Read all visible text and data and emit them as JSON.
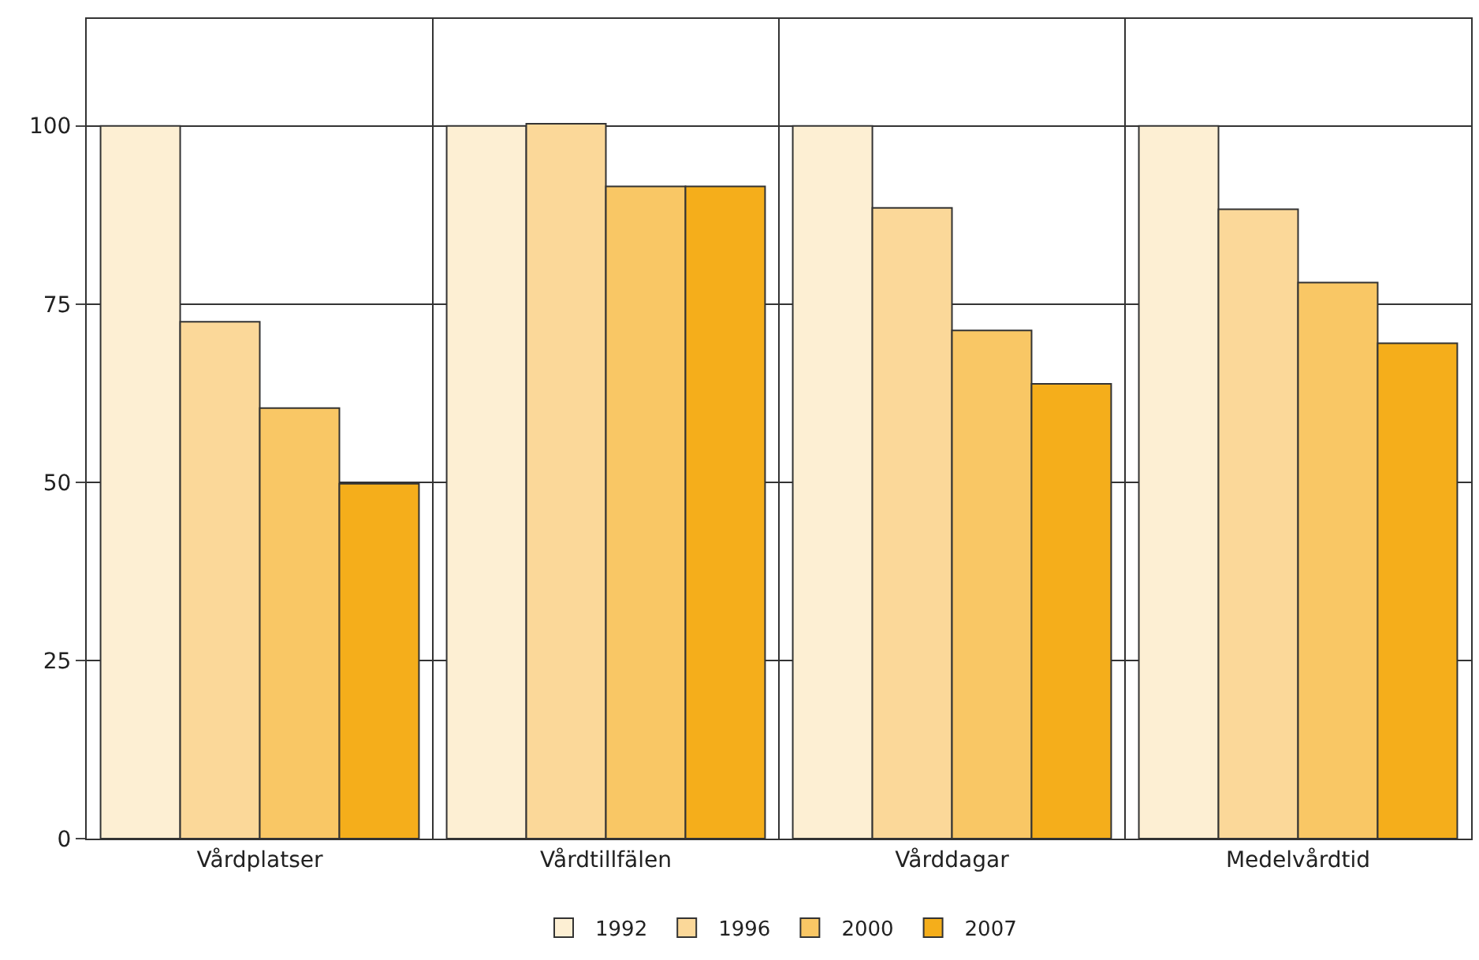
{
  "chart_data": {
    "type": "bar",
    "categories": [
      "Vårdplatser",
      "Vårdtillfälen",
      "Vårddagar",
      "Medelvårdtid"
    ],
    "series": [
      {
        "name": "1992",
        "color": "#fdefd3",
        "values": [
          100,
          100,
          100,
          100
        ]
      },
      {
        "name": "1996",
        "color": "#fbd899",
        "values": [
          72.5,
          100.3,
          88.5,
          88.3
        ]
      },
      {
        "name": "2000",
        "color": "#f9c765",
        "values": [
          60.4,
          91.5,
          71.3,
          78
        ]
      },
      {
        "name": "2007",
        "color": "#f5ae1b",
        "values": [
          49.8,
          91.5,
          63.8,
          69.5
        ]
      }
    ],
    "ylim": [
      0,
      115
    ],
    "yticks": [
      0,
      25,
      50,
      75,
      100
    ],
    "grid": true,
    "legend": "bottom"
  }
}
